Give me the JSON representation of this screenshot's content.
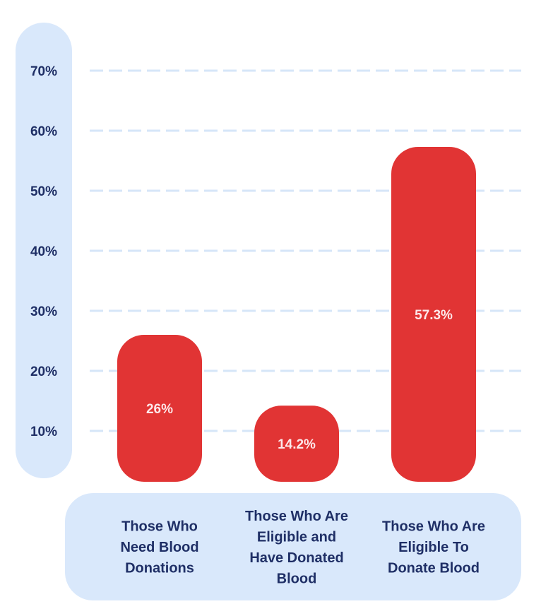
{
  "chart_data": {
    "type": "bar",
    "title": "",
    "xlabel": "",
    "ylabel": "",
    "ylim": [
      0,
      70
    ],
    "yticks": [
      10,
      20,
      30,
      40,
      50,
      60,
      70
    ],
    "ytick_labels": [
      "10%",
      "20%",
      "30%",
      "40%",
      "50%",
      "60%",
      "70%"
    ],
    "grid": true,
    "categories": [
      [
        "Those Who",
        "Need Blood",
        "Donations"
      ],
      [
        "Those Who Are",
        "Eligible and",
        "Have Donated",
        "Blood"
      ],
      [
        "Those Who Are",
        "Eligible To",
        "Donate Blood"
      ]
    ],
    "values": [
      26,
      14.2,
      57.3
    ],
    "value_labels": [
      "26%",
      "14.2%",
      "57.3%"
    ]
  },
  "colors": {
    "bar": "#e13434",
    "panel": "#d9e8fb",
    "grid": "#d6e6f8",
    "text": "#1f2f66",
    "bar_label": "#fde8ea"
  }
}
